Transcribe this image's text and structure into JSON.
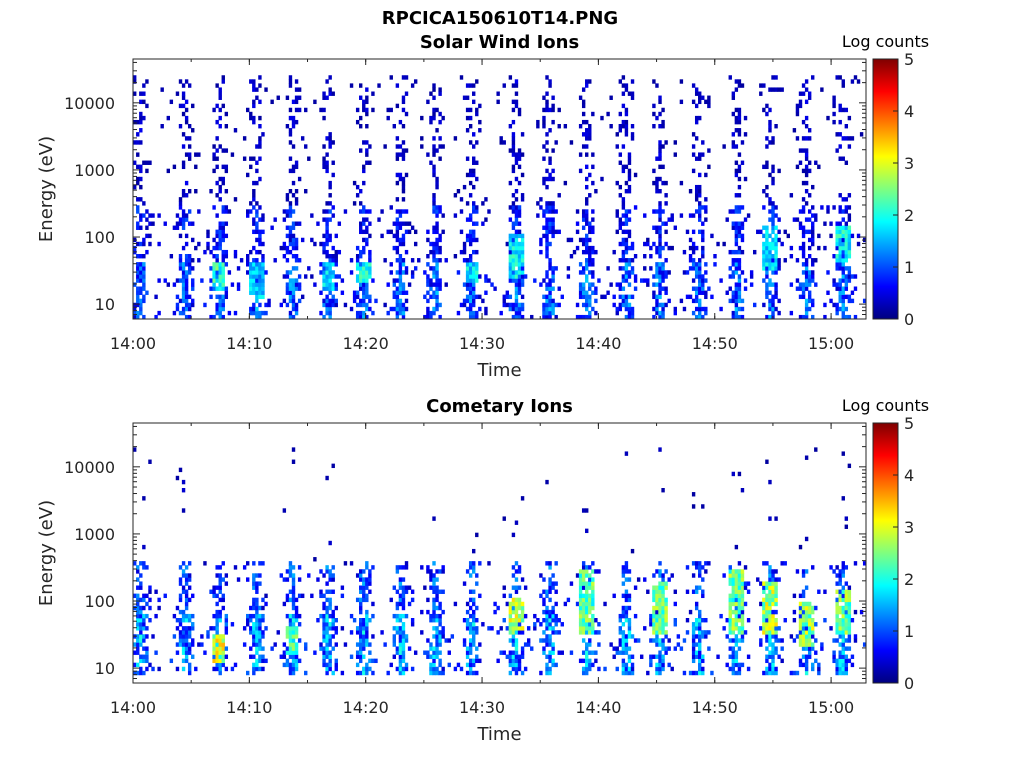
{
  "figure_title": "RPCICA150610T14.PNG",
  "colormap": [
    "#00007f",
    "#0000ff",
    "#007fff",
    "#00ffff",
    "#7fff7f",
    "#ffff00",
    "#ff7f00",
    "#ff0000",
    "#7f0000"
  ],
  "chart_data": [
    {
      "type": "heatmap",
      "title": "Solar Wind Ions",
      "xlabel": "Time",
      "ylabel": "Energy (eV)",
      "x_range": [
        "14:00",
        "15:03"
      ],
      "y_range": [
        6,
        45000
      ],
      "y_scale": "log",
      "x_ticks": [
        "14:00",
        "14:10",
        "14:20",
        "14:30",
        "14:40",
        "14:50",
        "15:00"
      ],
      "y_ticks": [
        10,
        100,
        1000,
        10000
      ],
      "y_tick_labels": [
        "10",
        "100",
        "1000",
        "10000"
      ],
      "colorbar": {
        "label": "Log counts",
        "range": [
          0,
          5
        ],
        "ticks": [
          "0",
          "1",
          "2",
          "3",
          "4",
          "5"
        ]
      },
      "grid": false,
      "sweep_times_min": [
        0.6,
        4.5,
        7.4,
        10.6,
        13.7,
        16.8,
        19.8,
        23.0,
        26.0,
        29.1,
        32.9,
        35.8,
        39.0,
        42.4,
        45.3,
        48.6,
        51.9,
        54.8,
        57.9,
        61.0
      ],
      "bands": [
        {
          "e_min": 6,
          "e_max": 40,
          "level": 1.2,
          "density": 0.8
        },
        {
          "e_min": 40,
          "e_max": 300,
          "level": 0.8,
          "density": 0.6
        },
        {
          "e_min": 300,
          "e_max": 25000,
          "level": 0.4,
          "density": 0.32
        }
      ],
      "highlights": [
        {
          "time_min": 7.4,
          "e_min": 15,
          "e_max": 40,
          "level": 2.3
        },
        {
          "time_min": 10.6,
          "e_min": 12,
          "e_max": 40,
          "level": 1.7
        },
        {
          "time_min": 16.8,
          "e_min": 15,
          "e_max": 45,
          "level": 1.8
        },
        {
          "time_min": 19.8,
          "e_min": 20,
          "e_max": 45,
          "level": 2.1
        },
        {
          "time_min": 29.1,
          "e_min": 20,
          "e_max": 45,
          "level": 1.9
        },
        {
          "time_min": 32.9,
          "e_min": 25,
          "e_max": 120,
          "level": 2.0
        },
        {
          "time_min": 54.8,
          "e_min": 30,
          "e_max": 150,
          "level": 1.8
        },
        {
          "time_min": 61.0,
          "e_min": 40,
          "e_max": 150,
          "level": 2.0
        }
      ]
    },
    {
      "type": "heatmap",
      "title": "Cometary Ions",
      "xlabel": "Time",
      "ylabel": "Energy (eV)",
      "x_range": [
        "14:00",
        "15:03"
      ],
      "y_range": [
        6,
        45000
      ],
      "y_scale": "log",
      "x_ticks": [
        "14:00",
        "14:10",
        "14:20",
        "14:30",
        "14:40",
        "14:50",
        "15:00"
      ],
      "y_ticks": [
        10,
        100,
        1000,
        10000
      ],
      "y_tick_labels": [
        "10",
        "100",
        "1000",
        "10000"
      ],
      "colorbar": {
        "label": "Log counts",
        "range": [
          0,
          5
        ],
        "ticks": [
          "0",
          "1",
          "2",
          "3",
          "4",
          "5"
        ]
      },
      "grid": false,
      "sweep_times_min": [
        0.6,
        4.5,
        7.4,
        10.6,
        13.7,
        16.8,
        19.8,
        23.0,
        26.0,
        29.1,
        32.9,
        35.8,
        39.0,
        42.4,
        45.3,
        48.6,
        51.9,
        54.8,
        57.9,
        61.0
      ],
      "bands": [
        {
          "e_min": 8,
          "e_max": 60,
          "level": 1.5,
          "density": 0.85
        },
        {
          "e_min": 60,
          "e_max": 400,
          "level": 1.1,
          "density": 0.55
        },
        {
          "e_min": 400,
          "e_max": 20000,
          "level": 0.3,
          "density": 0.03
        }
      ],
      "highlights": [
        {
          "time_min": 7.4,
          "e_min": 12,
          "e_max": 30,
          "level": 3.1
        },
        {
          "time_min": 13.7,
          "e_min": 15,
          "e_max": 40,
          "level": 2.5
        },
        {
          "time_min": 32.9,
          "e_min": 30,
          "e_max": 120,
          "level": 2.9
        },
        {
          "time_min": 39.0,
          "e_min": 30,
          "e_max": 300,
          "level": 2.5
        },
        {
          "time_min": 45.3,
          "e_min": 30,
          "e_max": 200,
          "level": 2.6
        },
        {
          "time_min": 51.9,
          "e_min": 30,
          "e_max": 300,
          "level": 2.6
        },
        {
          "time_min": 54.8,
          "e_min": 30,
          "e_max": 200,
          "level": 2.9
        },
        {
          "time_min": 57.9,
          "e_min": 20,
          "e_max": 100,
          "level": 2.8
        },
        {
          "time_min": 61.0,
          "e_min": 30,
          "e_max": 150,
          "level": 2.6
        }
      ]
    }
  ]
}
